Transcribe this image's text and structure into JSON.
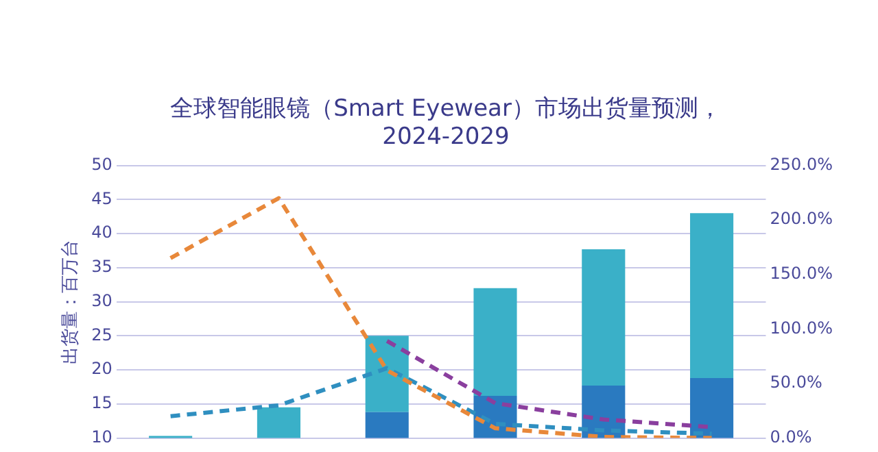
{
  "chart_data": {
    "type": "bar",
    "stacked": true,
    "title": "全球智能眼镜（Smart Eyewear）市场出货量预测，\n2024-2029",
    "ylabel": "出货量：百万台",
    "categories": [
      null,
      null,
      null,
      null,
      null,
      null
    ],
    "series": [
      {
        "color": "#2a7ac0",
        "values": [
          null,
          null,
          13.8,
          16.2,
          17.7,
          18.8
        ]
      },
      {
        "color": "#3ab0c8",
        "values": [
          10.3,
          14.5,
          11.2,
          15.8,
          20,
          24.2
        ]
      },
      {
        "type": "line",
        "axis": "y2",
        "color": "#e8883a",
        "line_style": "dashed",
        "values": [
          165,
          220,
          62,
          9,
          1,
          0
        ]
      },
      {
        "type": "line",
        "axis": "y2",
        "color": "#2f8fc0",
        "line_style": "dashed",
        "values": [
          20,
          30,
          64,
          13,
          7,
          4
        ]
      },
      {
        "type": "line",
        "axis": "y2",
        "color": "#8a3f9e",
        "line_style": "dashed",
        "values": [
          null,
          null,
          89,
          32,
          17,
          10
        ]
      }
    ],
    "ylim": [
      10,
      50
    ],
    "yticks": [
      10,
      15,
      20,
      25,
      30,
      35,
      40,
      45,
      50
    ],
    "y2lim": [
      0,
      250
    ],
    "y2ticks": [
      {
        "value": 0,
        "label": "0.0%"
      },
      {
        "value": 50,
        "label": "50.0%"
      },
      {
        "value": 100,
        "label": "100.0%"
      },
      {
        "value": 150,
        "label": "150.0%"
      },
      {
        "value": 200,
        "label": "200.0%"
      },
      {
        "value": 250,
        "label": "250.0%"
      }
    ],
    "grid": "y",
    "marker": "none",
    "legend": false
  }
}
